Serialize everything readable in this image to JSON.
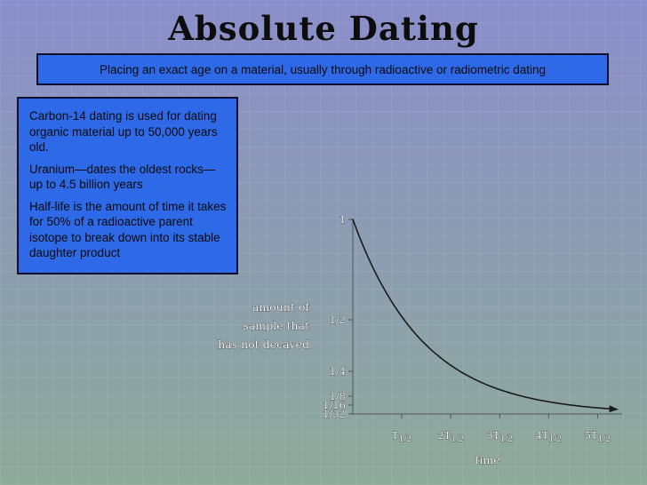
{
  "slide": {
    "title": "Absolute Dating",
    "subtitle": "Placing an exact age on a material, usually through radioactive or radiometric dating",
    "bullets": [
      "Carbon-14 dating is used for dating organic material up to 50,000 years old.",
      "Uranium—dates the oldest rocks—up to 4.5 billion years",
      "Half-life is the amount of time it takes for 50% of a radioactive parent isotope to break down into its stable daughter product"
    ]
  },
  "colors": {
    "box_fill": "#2e6ae8",
    "curve": "#1a1a1a"
  },
  "chart_data": {
    "type": "line",
    "title": "",
    "xlabel": "time",
    "ylabel_lines": [
      "amount of",
      "sample that",
      "has not decayed"
    ],
    "x_ticks": [
      {
        "value": 1,
        "main": "T",
        "sub": "1/2"
      },
      {
        "value": 2,
        "main": "2T",
        "sub": "1/2"
      },
      {
        "value": 3,
        "main": "3T",
        "sub": "1/2"
      },
      {
        "value": 4,
        "main": "4T",
        "sub": "1/2"
      },
      {
        "value": 5,
        "main": "5T",
        "sub": "1/2"
      }
    ],
    "y_ticks": [
      {
        "value": 1,
        "label": "1"
      },
      {
        "value": 0.5,
        "label": "1/2"
      },
      {
        "value": 0.25,
        "label": "1/4"
      },
      {
        "value": 0.125,
        "label": "1/8"
      },
      {
        "value": 0.0625,
        "label": "1/16"
      },
      {
        "value": 0.03125,
        "label": "1/32"
      }
    ],
    "xlim": [
      0,
      5.5
    ],
    "ylim": [
      0,
      1
    ],
    "x": [
      0,
      0.5,
      1,
      1.5,
      2,
      2.5,
      3,
      3.5,
      4,
      4.5,
      5,
      5.4
    ],
    "y": [
      1,
      0.707,
      0.5,
      0.354,
      0.25,
      0.177,
      0.125,
      0.088,
      0.0625,
      0.044,
      0.03125,
      0.024
    ],
    "grid": false,
    "legend": "none"
  }
}
